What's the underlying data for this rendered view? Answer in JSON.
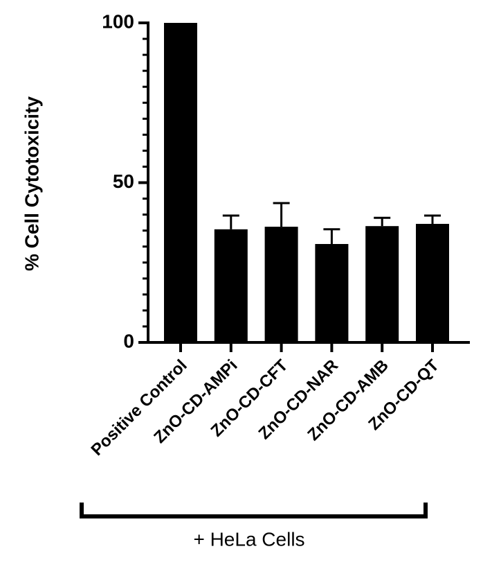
{
  "chart_data": {
    "type": "bar",
    "y_label": "% Cell Cytotoxicity",
    "categories": [
      "Positive Control",
      "ZnO-CD-AMPi",
      "ZnO-CD-CFT",
      "ZnO-CD-NAR",
      "ZnO-CD-AMB",
      "ZnO-CD-QT"
    ],
    "values": [
      100,
      35.4,
      36.2,
      30.8,
      36.4,
      37.1
    ],
    "errors": [
      0,
      4.3,
      7.4,
      4.6,
      2.6,
      2.6
    ],
    "color": "#000000",
    "ylim": [
      0,
      100
    ],
    "yticks": [
      0,
      50,
      100
    ],
    "minor_yticks": [
      5,
      10,
      15,
      20,
      25,
      30,
      35,
      40,
      45,
      55,
      60,
      65,
      70,
      75,
      80,
      85,
      90,
      95
    ],
    "group_label": "+ HeLa Cells"
  }
}
